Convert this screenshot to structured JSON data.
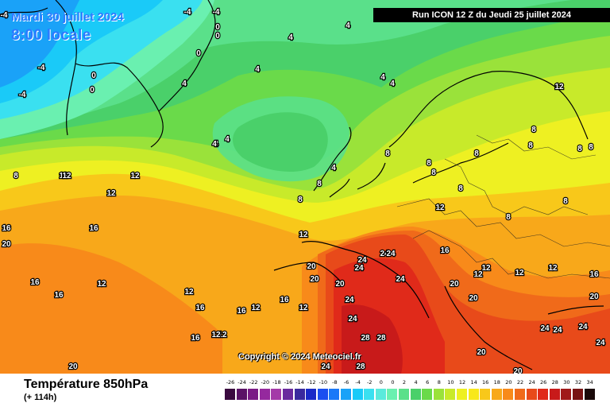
{
  "header": {
    "date": "Mardi 30 juillet 2024",
    "time": "8:00 locale",
    "run": "Run ICON 12 Z du Jeudi 25 juillet 2024",
    "copyright": "Copyright © 2024 Meteociel.fr"
  },
  "footer": {
    "field": "Température 850hPa",
    "lead": "(+ 114h)"
  },
  "legend": {
    "labels": [
      "-26",
      "-24",
      "-22",
      "-20",
      "-18",
      "-16",
      "-14",
      "-12",
      "-10",
      "-8",
      "-6",
      "-4",
      "-2",
      "0",
      "0",
      "2",
      "4",
      "6",
      "8",
      "10",
      "12",
      "14",
      "16",
      "18",
      "20",
      "22",
      "24",
      "26",
      "28",
      "30",
      "32",
      "34"
    ],
    "colors": [
      "#3a0a3f",
      "#5a1266",
      "#7a1a86",
      "#95299e",
      "#a43aa8",
      "#6a2a9e",
      "#3a2a9e",
      "#1a2ac8",
      "#1a4ef0",
      "#1a78f8",
      "#1aa2f8",
      "#1acaf8",
      "#3ae0f0",
      "#5aeadc",
      "#6af0b0",
      "#5ae08a",
      "#4ad06a",
      "#6ada4a",
      "#9ae23a",
      "#c8ea2a",
      "#eef022",
      "#f8e81a",
      "#f8c81a",
      "#f8a81a",
      "#f88a1a",
      "#f06a1a",
      "#e84a1a",
      "#e02a1a",
      "#c81a1a",
      "#a01a1a",
      "#781414",
      "#1a0a0a"
    ]
  },
  "map": {
    "contour_labels": [
      "-4",
      "-4",
      "-4",
      "0",
      "0",
      "0",
      "0",
      "0",
      "-4",
      "-4",
      "4",
      "4",
      "4",
      "4",
      "4",
      "4",
      "4",
      "12",
      "8",
      "8",
      "8",
      "12",
      "16",
      "12",
      "12",
      "20",
      "16",
      "16",
      "16",
      "12",
      "16",
      "12",
      "12",
      "16",
      "20",
      "24",
      "24",
      "24",
      "24",
      "24",
      "20",
      "20",
      "24",
      "24",
      "28",
      "28",
      "24",
      "28",
      "16",
      "16",
      "12",
      "12",
      "16",
      "12",
      "20",
      "20",
      "20",
      "24",
      "24",
      "24",
      "24",
      "20",
      "20",
      "16",
      "20",
      "12",
      "8",
      "8",
      "8",
      "8",
      "8",
      "8",
      "8",
      "12",
      "12",
      "8",
      "8",
      "8",
      "8",
      "4",
      "4",
      "4",
      "12",
      "12",
      "12",
      "12"
    ]
  }
}
